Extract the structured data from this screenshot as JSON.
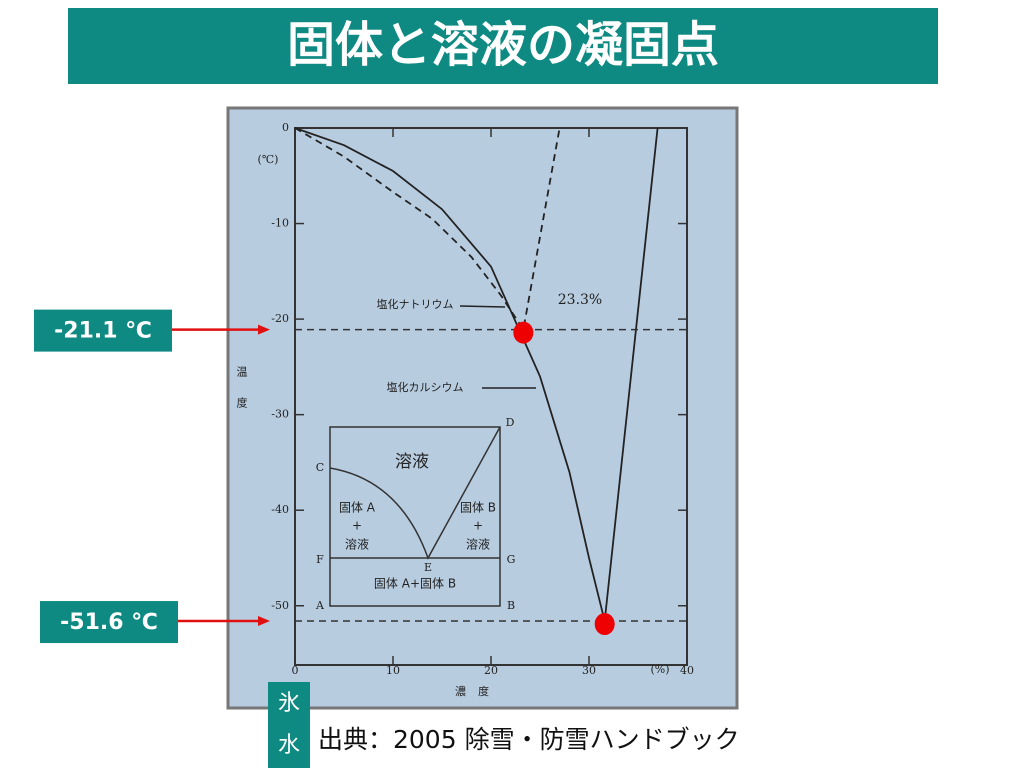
{
  "chart_data": {
    "type": "line",
    "title": "固体と溶液の凝固点",
    "y_unit": "(℃)",
    "ylabel": "温度",
    "x_unit": "(%)",
    "xlabel": "濃度",
    "xlim": [
      0,
      40
    ],
    "xticks": [
      0,
      10,
      20,
      30,
      40
    ],
    "ylim": [
      -56.2,
      0
    ],
    "yticks": [
      0,
      -10,
      -20,
      -30,
      -40,
      -50
    ],
    "series": [
      {
        "name": "塩化ナトリウム",
        "color": "#222222",
        "dashed": true,
        "x": [
          0,
          5,
          10,
          14,
          18,
          21,
          23.3,
          27
        ],
        "values": [
          0,
          -3,
          -6.7,
          -9.5,
          -13.5,
          -17.5,
          -21.1,
          0
        ]
      },
      {
        "name": "塩化カルシウム",
        "color": "#222222",
        "dashed": false,
        "x": [
          0,
          5,
          10,
          15,
          20,
          25,
          28,
          30,
          31.6,
          37
        ],
        "values": [
          0,
          -1.8,
          -4.5,
          -8.5,
          -14.5,
          -26,
          -36,
          -45,
          -51.6,
          0
        ]
      }
    ],
    "markers": [
      {
        "x": 23.3,
        "y": -21.1,
        "label": "-21.1 ℃",
        "color": "#ee0000"
      },
      {
        "x": 31.6,
        "y": -51.6,
        "label": "-51.6 ℃",
        "color": "#ee0000"
      }
    ],
    "annotation": "23.3%",
    "inset": {
      "title": "溶液",
      "left": [
        "固体 A",
        "+",
        "溶液"
      ],
      "right": [
        "固体 B",
        "+",
        "溶液"
      ],
      "bottom": "固体 A+固体 B",
      "points": [
        "A",
        "B",
        "C",
        "D",
        "E",
        "F",
        "G"
      ]
    },
    "side_label": [
      "氷",
      "水"
    ],
    "source": "出典：2005 除雪・防雪ハンドブック"
  }
}
